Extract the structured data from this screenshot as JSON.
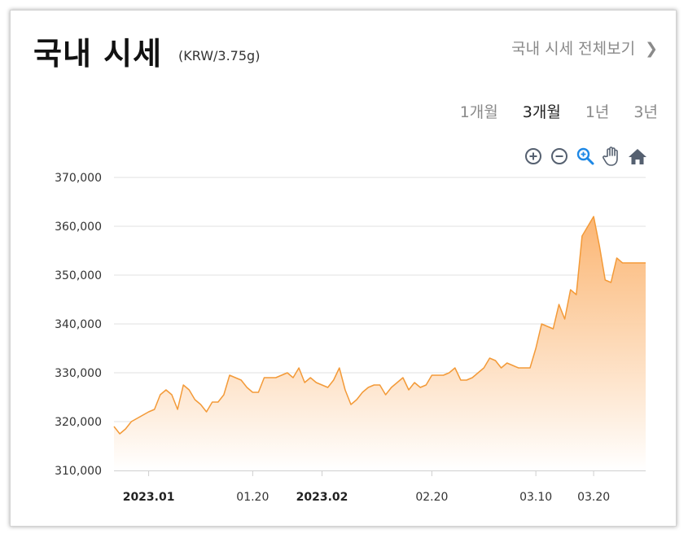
{
  "header": {
    "title": "국내 시세",
    "unit": "(KRW/3.75g)",
    "view_all": "국내 시세 전체보기"
  },
  "periods": [
    "1개월",
    "3개월",
    "1년",
    "3년"
  ],
  "active_period": "3개월",
  "colors": {
    "line": "#f39a38",
    "fill_top": "#fbb26c",
    "fill_bottom": "#ffffff",
    "grid": "#e2e2e2",
    "zoom_active": "#1e88e5",
    "tool": "#556070"
  },
  "chart_data": {
    "type": "area",
    "title": "",
    "xlabel": "",
    "ylabel": "",
    "ylim": [
      310000,
      370000
    ],
    "y_ticks": [
      "310,000",
      "320,000",
      "330,000",
      "340,000",
      "350,000",
      "360,000",
      "370,000"
    ],
    "y_tick_values": [
      310000,
      320000,
      330000,
      340000,
      350000,
      360000,
      370000
    ],
    "x_range": [
      "2022-12-27",
      "2023-03-29"
    ],
    "x_ticks": [
      {
        "label": "2023.01",
        "date": "2023-01-02",
        "bold": true
      },
      {
        "label": "01.20",
        "date": "2023-01-20",
        "bold": false
      },
      {
        "label": "2023.02",
        "date": "2023-02-01",
        "bold": true
      },
      {
        "label": "02.20",
        "date": "2023-02-20",
        "bold": false
      },
      {
        "label": "03.10",
        "date": "2023-03-10",
        "bold": false
      },
      {
        "label": "03.20",
        "date": "2023-03-20",
        "bold": false
      }
    ],
    "series": [
      {
        "name": "",
        "points": [
          [
            "2022-12-27",
            319000
          ],
          [
            "2022-12-28",
            317500
          ],
          [
            "2022-12-29",
            318500
          ],
          [
            "2022-12-30",
            320000
          ],
          [
            "2023-01-02",
            322000
          ],
          [
            "2023-01-03",
            322500
          ],
          [
            "2023-01-04",
            325500
          ],
          [
            "2023-01-05",
            326500
          ],
          [
            "2023-01-06",
            325500
          ],
          [
            "2023-01-07",
            322500
          ],
          [
            "2023-01-08",
            327500
          ],
          [
            "2023-01-09",
            326500
          ],
          [
            "2023-01-10",
            324500
          ],
          [
            "2023-01-11",
            323500
          ],
          [
            "2023-01-12",
            322000
          ],
          [
            "2023-01-13",
            324000
          ],
          [
            "2023-01-14",
            324000
          ],
          [
            "2023-01-15",
            325500
          ],
          [
            "2023-01-16",
            329500
          ],
          [
            "2023-01-17",
            329000
          ],
          [
            "2023-01-18",
            328500
          ],
          [
            "2023-01-19",
            327000
          ],
          [
            "2023-01-20",
            326000
          ],
          [
            "2023-01-21",
            326000
          ],
          [
            "2023-01-22",
            329000
          ],
          [
            "2023-01-23",
            329000
          ],
          [
            "2023-01-24",
            329000
          ],
          [
            "2023-01-25",
            329500
          ],
          [
            "2023-01-26",
            330000
          ],
          [
            "2023-01-27",
            329000
          ],
          [
            "2023-01-28",
            331000
          ],
          [
            "2023-01-29",
            328000
          ],
          [
            "2023-01-30",
            329000
          ],
          [
            "2023-01-31",
            328000
          ],
          [
            "2023-02-01",
            327500
          ],
          [
            "2023-02-02",
            327000
          ],
          [
            "2023-02-03",
            328500
          ],
          [
            "2023-02-04",
            331000
          ],
          [
            "2023-02-05",
            326500
          ],
          [
            "2023-02-06",
            323500
          ],
          [
            "2023-02-07",
            324500
          ],
          [
            "2023-02-08",
            326000
          ],
          [
            "2023-02-09",
            327000
          ],
          [
            "2023-02-10",
            327500
          ],
          [
            "2023-02-11",
            327500
          ],
          [
            "2023-02-12",
            325500
          ],
          [
            "2023-02-13",
            327000
          ],
          [
            "2023-02-14",
            328000
          ],
          [
            "2023-02-15",
            329000
          ],
          [
            "2023-02-16",
            326500
          ],
          [
            "2023-02-17",
            328000
          ],
          [
            "2023-02-18",
            327000
          ],
          [
            "2023-02-19",
            327500
          ],
          [
            "2023-02-20",
            329500
          ],
          [
            "2023-02-21",
            329500
          ],
          [
            "2023-02-22",
            329500
          ],
          [
            "2023-02-23",
            330000
          ],
          [
            "2023-02-24",
            331000
          ],
          [
            "2023-02-25",
            328500
          ],
          [
            "2023-02-26",
            328500
          ],
          [
            "2023-02-27",
            329000
          ],
          [
            "2023-02-28",
            330000
          ],
          [
            "2023-03-01",
            331000
          ],
          [
            "2023-03-02",
            333000
          ],
          [
            "2023-03-03",
            332500
          ],
          [
            "2023-03-04",
            331000
          ],
          [
            "2023-03-05",
            332000
          ],
          [
            "2023-03-06",
            331500
          ],
          [
            "2023-03-07",
            331000
          ],
          [
            "2023-03-08",
            331000
          ],
          [
            "2023-03-09",
            331000
          ],
          [
            "2023-03-10",
            335000
          ],
          [
            "2023-03-11",
            340000
          ],
          [
            "2023-03-12",
            339500
          ],
          [
            "2023-03-13",
            339000
          ],
          [
            "2023-03-14",
            344000
          ],
          [
            "2023-03-15",
            341000
          ],
          [
            "2023-03-16",
            347000
          ],
          [
            "2023-03-17",
            346000
          ],
          [
            "2023-03-18",
            358000
          ],
          [
            "2023-03-19",
            360000
          ],
          [
            "2023-03-20",
            362000
          ],
          [
            "2023-03-21",
            356000
          ],
          [
            "2023-03-22",
            349000
          ],
          [
            "2023-03-23",
            348500
          ],
          [
            "2023-03-24",
            353500
          ],
          [
            "2023-03-25",
            352500
          ],
          [
            "2023-03-29",
            352500
          ]
        ]
      }
    ]
  }
}
